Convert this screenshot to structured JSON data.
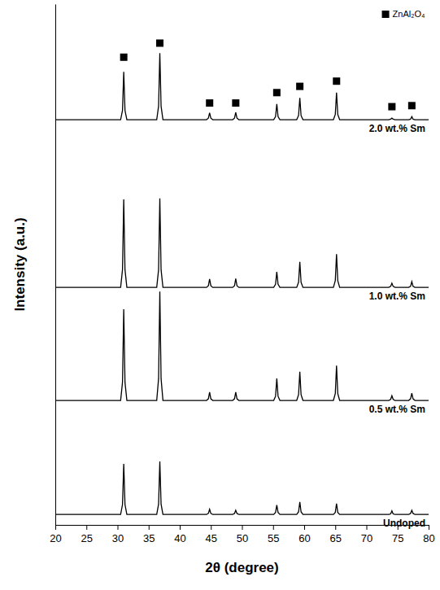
{
  "chart_data": {
    "type": "line",
    "x_label": "2θ (degree)",
    "y_label": "Intensity (a.u.)",
    "xlim": [
      20,
      80
    ],
    "xticks": [
      20,
      25,
      30,
      35,
      40,
      45,
      50,
      55,
      60,
      65,
      70,
      75,
      80
    ],
    "ylim": [
      0,
      100
    ],
    "tick_labels": "x",
    "grid": false,
    "legend": "upper right",
    "x": [
      20,
      30.5,
      30.8,
      31.0,
      31.2,
      31.5,
      36.3,
      36.6,
      36.8,
      37.0,
      37.3,
      44.3,
      44.6,
      44.8,
      45.0,
      45.3,
      48.5,
      48.8,
      49.0,
      49.2,
      49.5,
      55.1,
      55.4,
      55.6,
      55.8,
      56.1,
      58.8,
      59.1,
      59.3,
      59.5,
      59.8,
      64.7,
      65.0,
      65.2,
      65.4,
      65.7,
      73.6,
      73.9,
      74.1,
      74.3,
      74.6,
      76.8,
      77.1,
      77.3,
      77.5,
      77.8,
      80
    ],
    "series": [
      {
        "name": "Undoped",
        "type": "line",
        "color": "#000000",
        "line_style": "solid",
        "values": [
          2.0,
          2.0,
          3.9,
          11.7,
          3.9,
          2.0,
          2.0,
          4.0,
          12.2,
          4.0,
          2.0,
          2.0,
          2.2,
          3.0,
          2.2,
          2.0,
          2.0,
          2.2,
          2.8,
          2.2,
          2.0,
          2.0,
          2.4,
          3.8,
          2.4,
          2.0,
          2.0,
          2.5,
          4.4,
          2.5,
          2.0,
          2.0,
          2.4,
          4.1,
          2.4,
          2.0,
          2.0,
          2.1,
          2.7,
          2.1,
          2.0,
          2.0,
          2.2,
          2.8,
          2.2,
          2.0,
          2.0
        ]
      },
      {
        "name": "0.5 wt.% Sm",
        "type": "line",
        "color": "#000000",
        "line_style": "solid",
        "values": [
          23.9,
          23.9,
          27.4,
          41.4,
          27.4,
          23.9,
          23.9,
          28.1,
          44.8,
          28.1,
          23.9,
          23.9,
          24.2,
          25.5,
          24.2,
          23.9,
          23.9,
          24.2,
          25.5,
          24.2,
          23.9,
          23.9,
          24.7,
          28.1,
          24.7,
          23.9,
          23.9,
          25.0,
          29.4,
          25.0,
          23.9,
          23.9,
          25.2,
          30.6,
          25.2,
          23.9,
          23.9,
          24.1,
          24.8,
          24.1,
          23.9,
          23.9,
          24.2,
          25.3,
          24.2,
          23.9,
          23.9
        ]
      },
      {
        "name": "1.0 wt.% Sm",
        "type": "line",
        "color": "#000000",
        "line_style": "solid",
        "values": [
          45.6,
          45.6,
          49.0,
          62.5,
          49.0,
          45.6,
          45.6,
          49.0,
          62.7,
          49.0,
          45.6,
          45.6,
          45.9,
          47.2,
          45.9,
          45.6,
          45.6,
          45.9,
          47.3,
          45.9,
          45.6,
          45.6,
          46.2,
          48.6,
          46.2,
          45.6,
          45.6,
          46.6,
          50.5,
          46.6,
          45.6,
          45.6,
          46.9,
          52.0,
          46.9,
          45.6,
          45.6,
          45.8,
          46.4,
          45.8,
          45.6,
          45.6,
          45.8,
          46.7,
          45.8,
          45.6,
          45.6
        ]
      },
      {
        "name": "2.0 wt.% Sm",
        "type": "line",
        "color": "#000000",
        "line_style": "solid",
        "values": [
          77.8,
          77.8,
          79.6,
          87.0,
          79.6,
          77.8,
          77.8,
          80.4,
          90.6,
          80.4,
          77.8,
          77.8,
          78.1,
          79.1,
          78.1,
          77.8,
          77.8,
          78.1,
          79.2,
          78.1,
          77.8,
          77.8,
          78.4,
          80.8,
          78.4,
          77.8,
          77.8,
          78.6,
          82.0,
          78.6,
          77.8,
          77.8,
          78.8,
          83.0,
          78.8,
          77.8,
          77.8,
          77.9,
          78.1,
          77.9,
          77.8,
          77.8,
          77.9,
          78.4,
          77.9,
          77.8,
          77.8
        ]
      },
      {
        "name": "ZnAl₂O₄",
        "type": "scatter",
        "color": "#000000",
        "marker": "square",
        "x": [
          31.0,
          36.8,
          44.8,
          49.0,
          55.6,
          59.3,
          65.2,
          74.1,
          77.3
        ],
        "values": [
          89.8,
          92.5,
          81.0,
          81.0,
          83.0,
          84.2,
          85.2,
          80.3,
          80.5
        ]
      }
    ]
  }
}
